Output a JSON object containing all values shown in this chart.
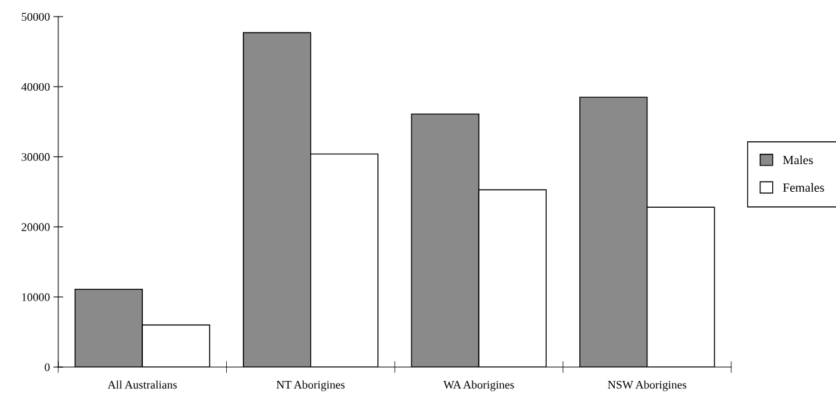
{
  "chart_data": {
    "type": "bar",
    "categories": [
      "All Australians",
      "NT Aborigines",
      "WA Aborigines",
      "NSW Aborigines"
    ],
    "series": [
      {
        "name": "Males",
        "color": "#8a8a8a",
        "values": [
          11100,
          47700,
          36100,
          38500
        ]
      },
      {
        "name": "Females",
        "color": "#ffffff",
        "values": [
          6000,
          30400,
          25300,
          22800
        ]
      }
    ],
    "ylim": [
      0,
      50000
    ],
    "yticks": [
      0,
      10000,
      20000,
      30000,
      40000,
      50000
    ],
    "grid": false,
    "legend": "right"
  }
}
